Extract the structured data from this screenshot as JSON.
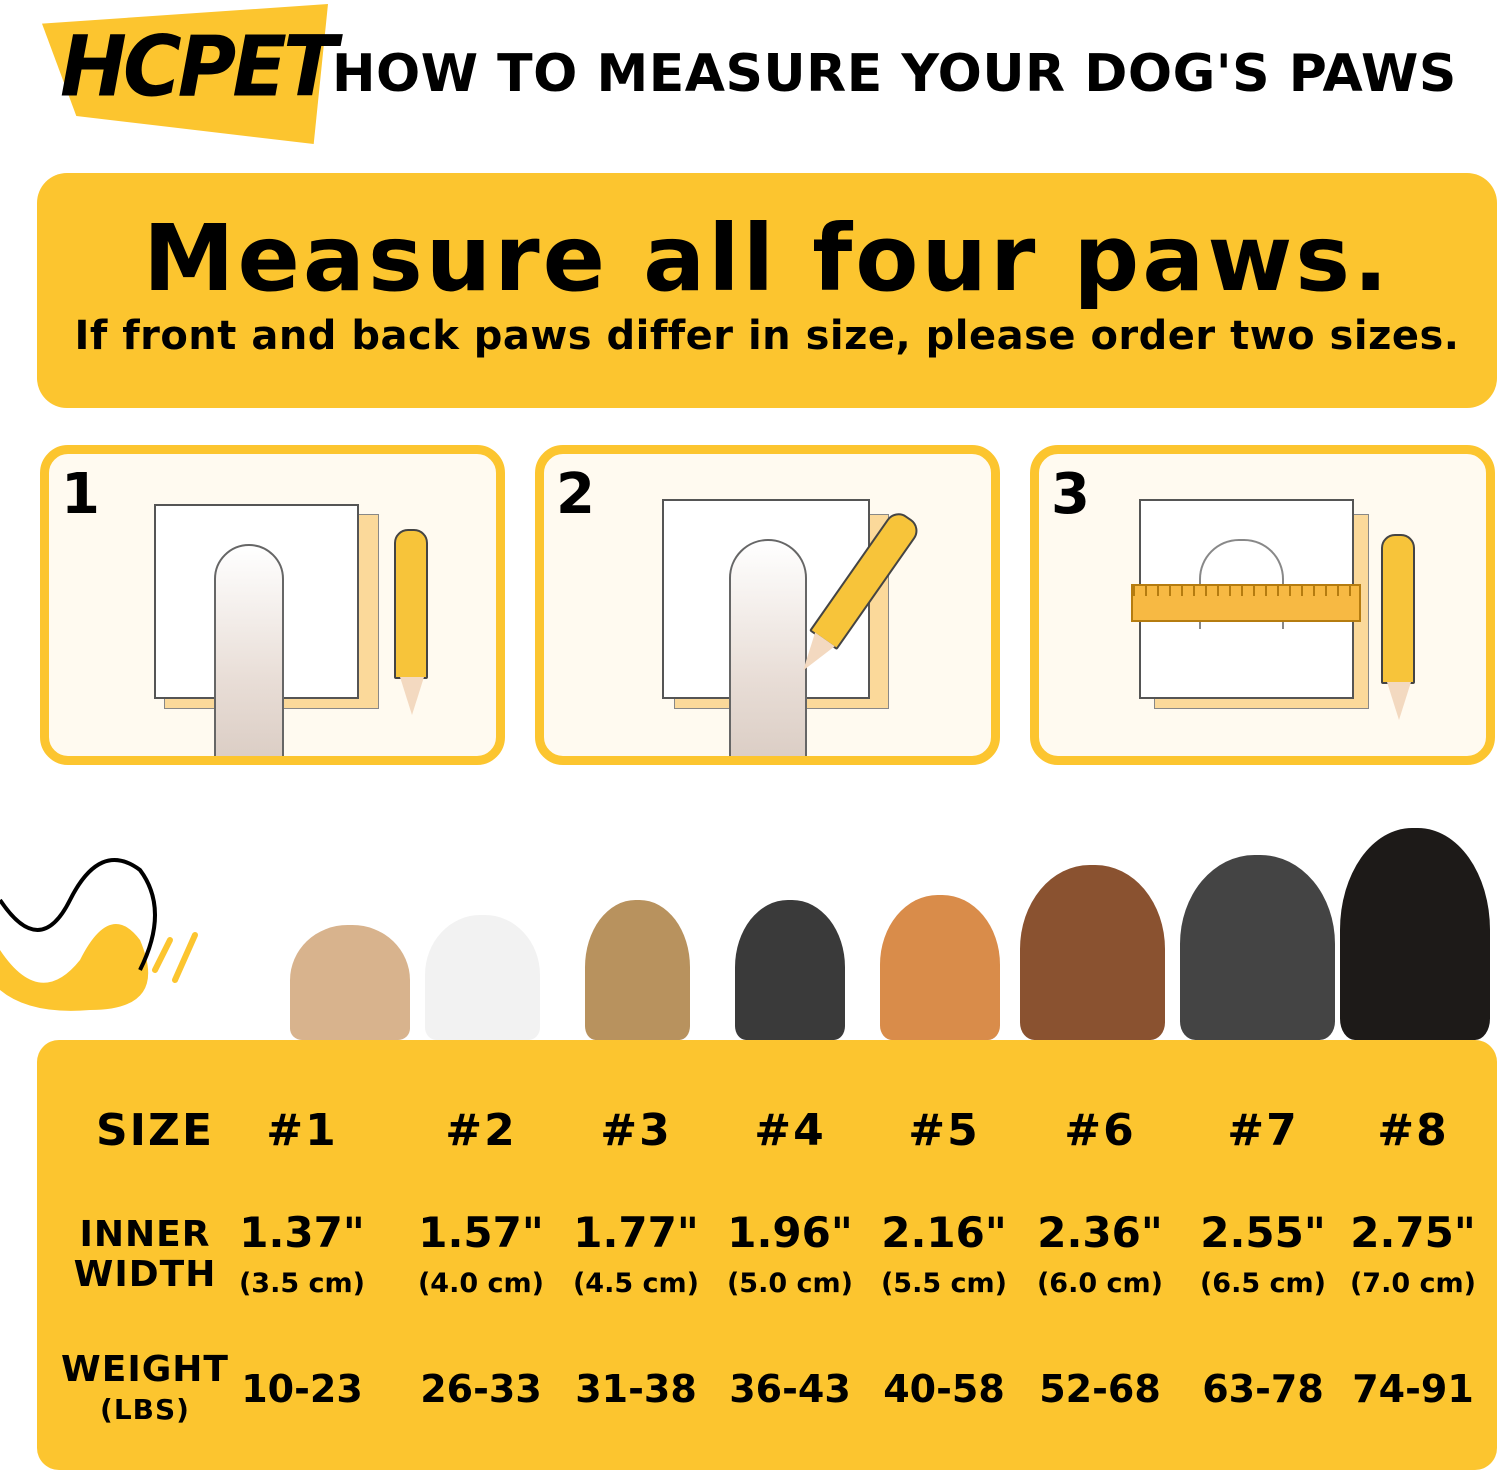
{
  "brand": "HCPET",
  "title": "HOW TO MEASURE YOUR DOG'S PAWS",
  "banner": {
    "heading": "Measure all four paws.",
    "subtext": "If front and back paws differ in size, please order two sizes."
  },
  "steps": [
    {
      "number": "1"
    },
    {
      "number": "2"
    },
    {
      "number": "3"
    }
  ],
  "colors": {
    "accent": "#fcc52f",
    "text": "#000000"
  },
  "table": {
    "size_label": "SIZE",
    "width_label_1": "INNER",
    "width_label_2": "WIDTH",
    "weight_label": "WEIGHT",
    "weight_unit": "(LBS)",
    "sizes": [
      "#1",
      "#2",
      "#3",
      "#4",
      "#5",
      "#6",
      "#7",
      "#8"
    ],
    "inches": [
      "1.37\"",
      "1.57\"",
      "1.77\"",
      "1.96\"",
      "2.16\"",
      "2.36\"",
      "2.55\"",
      "2.75\""
    ],
    "cm": [
      "(3.5 cm)",
      "(4.0 cm)",
      "(4.5 cm)",
      "(5.0 cm)",
      "(5.5 cm)",
      "(6.0 cm)",
      "(6.5 cm)",
      "(7.0 cm)"
    ],
    "weights": [
      "10-23",
      "26-33",
      "31-38",
      "36-43",
      "40-58",
      "52-68",
      "63-78",
      "74-91"
    ]
  }
}
